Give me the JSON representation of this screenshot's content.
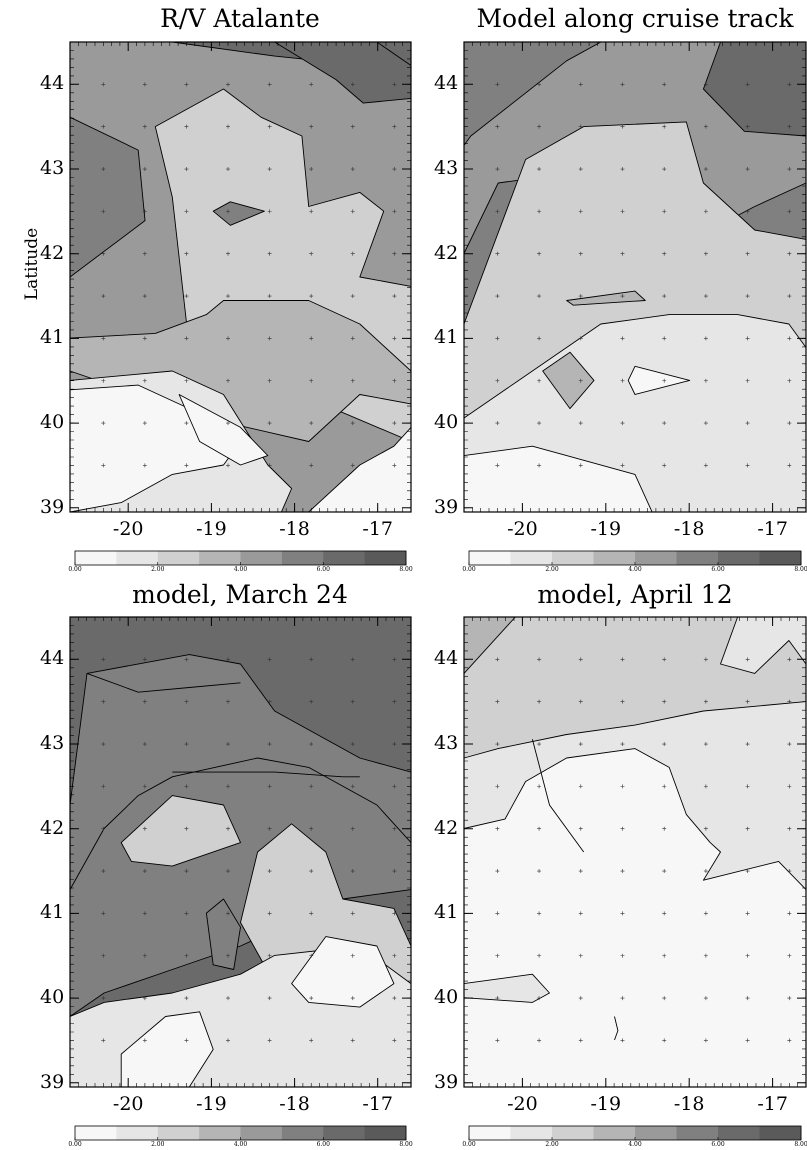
{
  "chart_data": [
    {
      "type": "heatmap",
      "title": "R/V Atalante",
      "ylabel": "Latitude",
      "xticks": [
        "-20",
        "-19",
        "-18",
        "-17"
      ],
      "yticks": [
        "44",
        "43",
        "42",
        "41",
        "40",
        "39"
      ],
      "xlim": [
        -20.7,
        -16.6
      ],
      "ylim": [
        38.95,
        44.5
      ],
      "colorbar": {
        "min": 0,
        "max": 8,
        "tick_labels": [
          "0.00",
          "2.00",
          "4.00",
          "6.00",
          "8.00"
        ],
        "levels": [
          1,
          2,
          3,
          4,
          5,
          6,
          7
        ]
      }
    },
    {
      "type": "heatmap",
      "title": "Model along cruise track",
      "xticks": [
        "-20",
        "-19",
        "-18",
        "-17"
      ],
      "yticks": [
        "44",
        "43",
        "42",
        "41",
        "40",
        "39"
      ],
      "xlim": [
        -20.7,
        -16.6
      ],
      "ylim": [
        38.95,
        44.5
      ],
      "colorbar": {
        "min": 0,
        "max": 8,
        "tick_labels": [
          "0.00",
          "2.00",
          "4.00",
          "6.00",
          "8.00"
        ],
        "levels": [
          1,
          2,
          3,
          4,
          5,
          6,
          7
        ]
      }
    },
    {
      "type": "heatmap",
      "title": "model, March 24",
      "xticks": [
        "-20",
        "-19",
        "-18",
        "-17"
      ],
      "yticks": [
        "44",
        "43",
        "42",
        "41",
        "40",
        "39"
      ],
      "xlim": [
        -20.7,
        -16.6
      ],
      "ylim": [
        38.95,
        44.5
      ],
      "colorbar": {
        "min": 0,
        "max": 8,
        "tick_labels": [
          "0.00",
          "2.00",
          "4.00",
          "6.00",
          "8.00"
        ],
        "levels": [
          1,
          2,
          3,
          4,
          5,
          6,
          7
        ]
      }
    },
    {
      "type": "heatmap",
      "title": "model, April 12",
      "xticks": [
        "-20",
        "-19",
        "-18",
        "-17"
      ],
      "yticks": [
        "44",
        "43",
        "42",
        "41",
        "40",
        "39"
      ],
      "xlim": [
        -20.7,
        -16.6
      ],
      "ylim": [
        38.95,
        44.5
      ],
      "colorbar": {
        "min": 0,
        "max": 8,
        "tick_labels": [
          "0.00",
          "2.00",
          "4.00",
          "6.00",
          "8.00"
        ],
        "levels": [
          1,
          2,
          3,
          4,
          5,
          6,
          7
        ]
      }
    }
  ],
  "colors": {
    "levels": [
      "#f7f7f7",
      "#e6e6e6",
      "#d0d0d0",
      "#b5b5b5",
      "#9a9a9a",
      "#808080",
      "#6a6a6a",
      "#5a5a5a"
    ],
    "line": "#000000",
    "frame": "#000000"
  }
}
